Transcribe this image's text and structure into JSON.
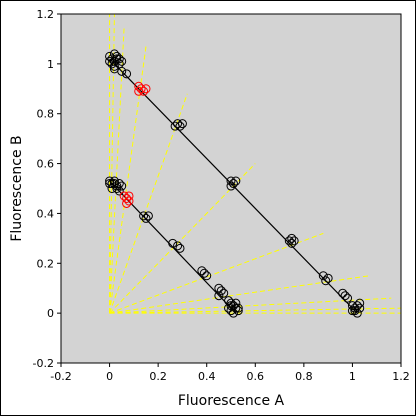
{
  "chart_data": {
    "type": "scatter",
    "xlabel": "Fluorescence A",
    "ylabel": "Fluorescence B",
    "xlim": [
      -0.2,
      1.2
    ],
    "ylim": [
      -0.2,
      1.2
    ],
    "x_ticks": [
      -0.2,
      0,
      0.2,
      0.4,
      0.6,
      0.8,
      1,
      1.2
    ],
    "y_ticks": [
      -0.2,
      0,
      0.2,
      0.4,
      0.6,
      0.8,
      1,
      1.2
    ],
    "x_tick_labels": [
      "-0.2",
      "0",
      "0.2",
      "0.4",
      "0.6",
      "0.8",
      "1",
      "1.2"
    ],
    "y_tick_labels": [
      "-0.2",
      "0",
      "0.2",
      "0.4",
      "0.6",
      "0.8",
      "1",
      "1.2"
    ],
    "grid": false,
    "colors": {
      "plot_background": "#d3d3d3",
      "cluster_markers": "#000000",
      "highlighted_markers": "#ff0000",
      "guide_rays": "#ffff00",
      "fit_lines": "#000000"
    },
    "fit_lines": [
      {
        "x": [
          0.0,
          1.02
        ],
        "y": [
          1.02,
          0.0
        ]
      },
      {
        "x": [
          0.0,
          0.52
        ],
        "y": [
          0.53,
          0.0
        ]
      }
    ],
    "guide_rays": [
      {
        "x": [
          0,
          0.0
        ],
        "y": [
          0,
          1.2
        ]
      },
      {
        "x": [
          0,
          0.02
        ],
        "y": [
          0,
          1.2
        ]
      },
      {
        "x": [
          0,
          0.06
        ],
        "y": [
          0,
          1.15
        ]
      },
      {
        "x": [
          0,
          0.15
        ],
        "y": [
          0,
          1.07
        ]
      },
      {
        "x": [
          0,
          0.32
        ],
        "y": [
          0,
          0.88
        ]
      },
      {
        "x": [
          0,
          0.6
        ],
        "y": [
          0,
          0.6
        ]
      },
      {
        "x": [
          0,
          0.88
        ],
        "y": [
          0,
          0.32
        ]
      },
      {
        "x": [
          0,
          1.07
        ],
        "y": [
          0,
          0.15
        ]
      },
      {
        "x": [
          0,
          1.16
        ],
        "y": [
          0,
          0.06
        ]
      },
      {
        "x": [
          0,
          1.2
        ],
        "y": [
          0,
          0.02
        ]
      },
      {
        "x": [
          0,
          1.2
        ],
        "y": [
          0,
          0.0
        ]
      }
    ],
    "series": [
      {
        "color": "#000000",
        "points": [
          [
            0.01,
            1.02
          ],
          [
            0.02,
            1.01
          ],
          [
            0.03,
            1.03
          ],
          [
            0.0,
            1.01
          ],
          [
            0.04,
            1.0
          ],
          [
            0.02,
            0.99
          ],
          [
            0.01,
            1.0
          ],
          [
            0.03,
            1.02
          ],
          [
            0.05,
            1.01
          ],
          [
            0.0,
            1.03
          ],
          [
            0.04,
            1.02
          ],
          [
            0.02,
            1.04
          ],
          [
            0.05,
            0.97
          ],
          [
            0.07,
            0.96
          ],
          [
            0.02,
            0.98
          ],
          [
            0.28,
            0.76
          ],
          [
            0.29,
            0.75
          ],
          [
            0.3,
            0.76
          ],
          [
            0.27,
            0.75
          ],
          [
            0.5,
            0.53
          ],
          [
            0.51,
            0.52
          ],
          [
            0.52,
            0.53
          ],
          [
            0.5,
            0.51
          ],
          [
            0.74,
            0.29
          ],
          [
            0.75,
            0.28
          ],
          [
            0.76,
            0.29
          ],
          [
            0.75,
            0.3
          ],
          [
            0.88,
            0.15
          ],
          [
            0.9,
            0.14
          ],
          [
            0.89,
            0.13
          ],
          [
            0.96,
            0.08
          ],
          [
            0.97,
            0.07
          ],
          [
            0.98,
            0.06
          ],
          [
            1.0,
            0.03
          ],
          [
            1.01,
            0.02
          ],
          [
            1.02,
            0.03
          ],
          [
            1.03,
            0.02
          ],
          [
            1.01,
            0.01
          ],
          [
            1.02,
            0.0
          ],
          [
            1.0,
            0.01
          ],
          [
            1.03,
            0.04
          ],
          [
            0.0,
            0.53
          ],
          [
            0.01,
            0.52
          ],
          [
            0.02,
            0.53
          ],
          [
            0.03,
            0.51
          ],
          [
            0.01,
            0.5
          ],
          [
            0.02,
            0.52
          ],
          [
            0.04,
            0.52
          ],
          [
            0.03,
            0.5
          ],
          [
            0.0,
            0.52
          ],
          [
            0.05,
            0.51
          ],
          [
            0.04,
            0.49
          ],
          [
            0.14,
            0.39
          ],
          [
            0.15,
            0.38
          ],
          [
            0.16,
            0.39
          ],
          [
            0.26,
            0.28
          ],
          [
            0.28,
            0.27
          ],
          [
            0.29,
            0.26
          ],
          [
            0.38,
            0.17
          ],
          [
            0.39,
            0.16
          ],
          [
            0.4,
            0.15
          ],
          [
            0.45,
            0.1
          ],
          [
            0.46,
            0.09
          ],
          [
            0.47,
            0.08
          ],
          [
            0.45,
            0.07
          ],
          [
            0.49,
            0.05
          ],
          [
            0.5,
            0.04
          ],
          [
            0.51,
            0.03
          ],
          [
            0.52,
            0.02
          ],
          [
            0.5,
            0.01
          ],
          [
            0.51,
            0.0
          ],
          [
            0.52,
            0.04
          ],
          [
            0.53,
            0.02
          ],
          [
            0.5,
            0.03
          ],
          [
            0.49,
            0.02
          ],
          [
            0.53,
            0.01
          ]
        ]
      },
      {
        "color": "#ff0000",
        "points": [
          [
            0.12,
            0.91
          ],
          [
            0.13,
            0.9
          ],
          [
            0.14,
            0.89
          ],
          [
            0.15,
            0.9
          ],
          [
            0.12,
            0.89
          ],
          [
            0.06,
            0.47
          ],
          [
            0.07,
            0.46
          ],
          [
            0.08,
            0.45
          ],
          [
            0.07,
            0.44
          ],
          [
            0.08,
            0.47
          ]
        ]
      }
    ]
  }
}
